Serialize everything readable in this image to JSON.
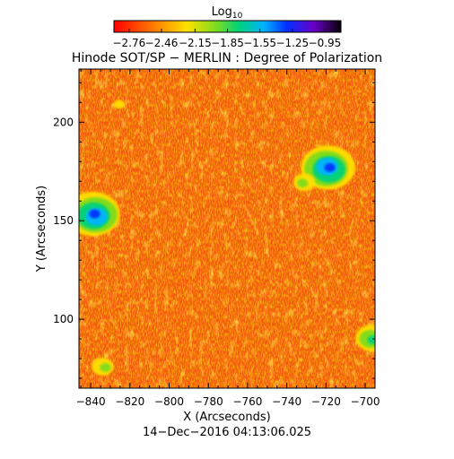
{
  "chart_data": {
    "type": "heatmap",
    "title": "Hinode SOT/SP − MERLIN : Degree of Polarization",
    "xlabel": "X (Arcseconds)",
    "ylabel": "Y (Arcseconds)",
    "footer": "14−Dec−2016 04:13:06.025",
    "xlim": [
      -846,
      -695
    ],
    "ylim": [
      65,
      227
    ],
    "x_ticks": [
      -840,
      -820,
      -800,
      -780,
      -760,
      -740,
      -720,
      -700
    ],
    "x_tick_labels": [
      "−840",
      "−820",
      "−800",
      "−780",
      "−760",
      "−740",
      "−720",
      "−700"
    ],
    "y_ticks": [
      100,
      150,
      200
    ],
    "y_tick_labels": [
      "100",
      "150",
      "200"
    ],
    "colorbar": {
      "label_base": "Log",
      "label_sub": "10",
      "min": -2.9,
      "max": -0.8,
      "ticks": [
        -2.76,
        -2.46,
        -2.15,
        -1.85,
        -1.55,
        -1.25,
        -0.95
      ],
      "tick_labels": [
        "−2.76",
        "−2.46",
        "−2.15",
        "−1.85",
        "−1.55",
        "−1.25",
        "−0.95"
      ],
      "colormap": "rainbow: red-orange-yellow-green-cyan-blue-purple-black"
    },
    "background_level": -2.5,
    "features": [
      {
        "name": "polarized patch",
        "x": -838,
        "y": 153,
        "peak": -1.1
      },
      {
        "name": "polarized patch",
        "x": -719,
        "y": 177,
        "peak": -1.0
      },
      {
        "name": "polarized patch",
        "x": -732,
        "y": 170,
        "peak": -1.7
      },
      {
        "name": "polarized patch",
        "x": -825,
        "y": 210,
        "peak": -2.0
      },
      {
        "name": "polarized patch",
        "x": -697,
        "y": 90,
        "peak": -1.4
      },
      {
        "name": "polarized patch",
        "x": -833,
        "y": 76,
        "peak": -1.8
      }
    ]
  }
}
